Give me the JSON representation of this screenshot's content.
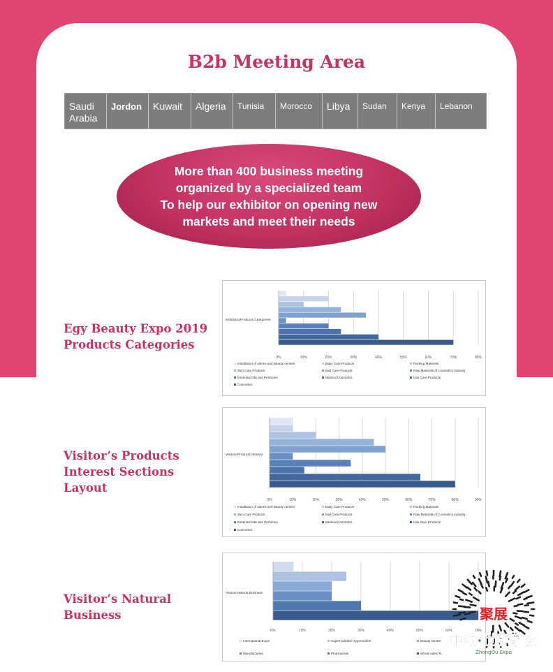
{
  "page": {
    "title": "B2b Meeting Area",
    "tabs": [
      {
        "label": "Saudi\nArabia",
        "w": 60,
        "cls": ""
      },
      {
        "label": "Jordon",
        "w": 60,
        "cls": "bold"
      },
      {
        "label": "Kuwait",
        "w": 61,
        "cls": ""
      },
      {
        "label": "Algeria",
        "w": 60,
        "cls": ""
      },
      {
        "label": "Tunisia",
        "w": 61,
        "cls": "sm"
      },
      {
        "label": "Morocco",
        "w": 67,
        "cls": "sm"
      },
      {
        "label": "Libya",
        "w": 51,
        "cls": ""
      },
      {
        "label": "Sudan",
        "w": 56,
        "cls": "sm"
      },
      {
        "label": "Kenya",
        "w": 55,
        "cls": "sm"
      },
      {
        "label": "Lebanon",
        "w": 72,
        "cls": "sm"
      }
    ],
    "banner": "More than 400 business meeting\norganized by a specialized team\nTo help our exhibitor on opening new\nmarkets and meet their needs",
    "sections": [
      {
        "title": "Egy Beauty Expo 2019\nProducts Categories"
      },
      {
        "title": "Visitor’s Products\nInterest Sections\nLayout"
      },
      {
        "title": "Visitor’s Natural\nBusiness"
      }
    ],
    "logo": {
      "brand_cn_top": "聚展",
      "brand_cn_bottom": "中欧·世界展会",
      "brand_en": "ZhongOu Expo"
    }
  },
  "chart_data": [
    {
      "type": "bar",
      "orientation": "horizontal",
      "ylabel": "ExhibitorsProducts Categories",
      "xlim": [
        0,
        80
      ],
      "xticks": [
        "0%",
        "10%",
        "20%",
        "30%",
        "40%",
        "50%",
        "60%",
        "70%",
        "80%"
      ],
      "series": [
        {
          "name": "Installation of salons and Beauty centers",
          "values": [
            3
          ]
        },
        {
          "name": "Baby Care Products",
          "values": [
            20
          ]
        },
        {
          "name": "Packing Materials",
          "values": [
            10
          ]
        },
        {
          "name": "Skin Care Products",
          "values": [
            25
          ]
        },
        {
          "name": "Nail Care Products",
          "values": [
            35
          ]
        },
        {
          "name": "Raw Materials of Cosmetics Industry",
          "values": [
            3
          ]
        },
        {
          "name": "Essential Oils and Perfumes",
          "values": [
            20
          ]
        },
        {
          "name": "Medical Cosmetics",
          "values": [
            25
          ]
        },
        {
          "name": "Hair Care Products",
          "values": [
            40
          ]
        },
        {
          "name": "Cosmetics",
          "values": [
            70
          ]
        }
      ],
      "colors": [
        "#dde6f2",
        "#c5d4ea",
        "#adc3e1",
        "#95b2d8",
        "#7ea1cf",
        "#6890c4",
        "#5881b8",
        "#4c74aa",
        "#41679b",
        "#365b8c"
      ],
      "legend_position": "bottom"
    },
    {
      "type": "bar",
      "orientation": "horizontal",
      "ylabel": "Visitors Products Interest",
      "xlim": [
        0,
        90
      ],
      "xticks": [
        "0%",
        "10%",
        "20%",
        "30%",
        "40%",
        "50%",
        "60%",
        "70%",
        "80%",
        "90%"
      ],
      "series": [
        {
          "name": "Installation of salons and Beauty centers",
          "values": [
            10
          ]
        },
        {
          "name": "Baby Care Products",
          "values": [
            10
          ]
        },
        {
          "name": "Packing Materials",
          "values": [
            20
          ]
        },
        {
          "name": "Skin Care Products",
          "values": [
            45
          ]
        },
        {
          "name": "Nail Care Products",
          "values": [
            50
          ]
        },
        {
          "name": "Raw Materials of Cosmetics Industry",
          "values": [
            10
          ]
        },
        {
          "name": "Essential Oils and Perfumes",
          "values": [
            35
          ]
        },
        {
          "name": "Medical Cosmetics",
          "values": [
            15
          ]
        },
        {
          "name": "Hair Care Products",
          "values": [
            65
          ]
        },
        {
          "name": "Cosmetics",
          "values": [
            80
          ]
        }
      ],
      "colors": [
        "#dde6f2",
        "#c5d4ea",
        "#adc3e1",
        "#95b2d8",
        "#7ea1cf",
        "#6890c4",
        "#5881b8",
        "#4c74aa",
        "#41679b",
        "#365b8c"
      ],
      "legend_position": "bottom"
    },
    {
      "type": "bar",
      "orientation": "horizontal",
      "ylabel": "Visitors Natural Business",
      "xlim": [
        0,
        70
      ],
      "xticks": [
        "0%",
        "10%",
        "20%",
        "30%",
        "40%",
        "50%",
        "60%",
        "70%"
      ],
      "series": [
        {
          "name": "International Buyer",
          "values": [
            7
          ]
        },
        {
          "name": "Supermarkets/ Hypermarket",
          "values": [
            25
          ]
        },
        {
          "name": "Beauty Center",
          "values": [
            20
          ]
        },
        {
          "name": "Manufactories",
          "values": [
            20
          ]
        },
        {
          "name": "Pharmacists",
          "values": [
            30
          ]
        },
        {
          "name": "Whole saler/ R..",
          "values": [
            70
          ]
        }
      ],
      "colors": [
        "#d0dcee",
        "#adc3e1",
        "#8aaad4",
        "#6890c4",
        "#4f78ad",
        "#365b8c"
      ],
      "legend_position": "bottom"
    }
  ]
}
